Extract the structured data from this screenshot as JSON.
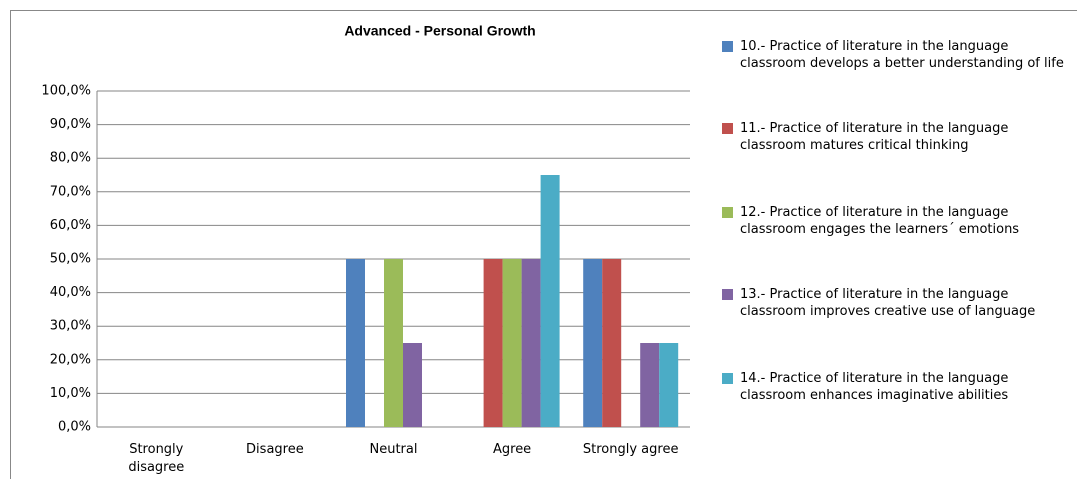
{
  "chart_data": {
    "type": "bar",
    "title": "Advanced - Personal Growth",
    "categories": [
      "Strongly disagree",
      "Disagree",
      "Neutral",
      "Agree",
      "Strongly agree"
    ],
    "series": [
      {
        "name": "10.- Practice of literature in the language classroom develops a better understanding of life",
        "color": "#4f81bd",
        "values": [
          0,
          0,
          50,
          0,
          50
        ]
      },
      {
        "name": "11.- Practice of literature in the language classroom matures critical thinking",
        "color": "#c0504d",
        "values": [
          0,
          0,
          0,
          50,
          50
        ]
      },
      {
        "name": "12.- Practice of literature in the language classroom engages the learners´ emotions",
        "color": "#9bbb59",
        "values": [
          0,
          0,
          50,
          50,
          0
        ]
      },
      {
        "name": "13.- Practice of literature in the language classroom improves creative use of language",
        "color": "#8064a2",
        "values": [
          0,
          0,
          25,
          50,
          25
        ]
      },
      {
        "name": "14.- Practice of literature in the language classroom enhances imaginative abilities",
        "color": "#4bacc6",
        "values": [
          0,
          0,
          0,
          75,
          25
        ]
      }
    ],
    "ylim": [
      0,
      100
    ],
    "yticks": [
      {
        "value": 0,
        "label": "0,0%"
      },
      {
        "value": 10,
        "label": "10,0%"
      },
      {
        "value": 20,
        "label": "20,0%"
      },
      {
        "value": 30,
        "label": "30,0%"
      },
      {
        "value": 40,
        "label": "40,0%"
      },
      {
        "value": 50,
        "label": "50,0%"
      },
      {
        "value": 60,
        "label": "60,0%"
      },
      {
        "value": 70,
        "label": "70,0%"
      },
      {
        "value": 80,
        "label": "80,0%"
      },
      {
        "value": 90,
        "label": "90,0%"
      },
      {
        "value": 100,
        "label": "100,0%"
      }
    ],
    "grid": true,
    "legend": "right"
  }
}
